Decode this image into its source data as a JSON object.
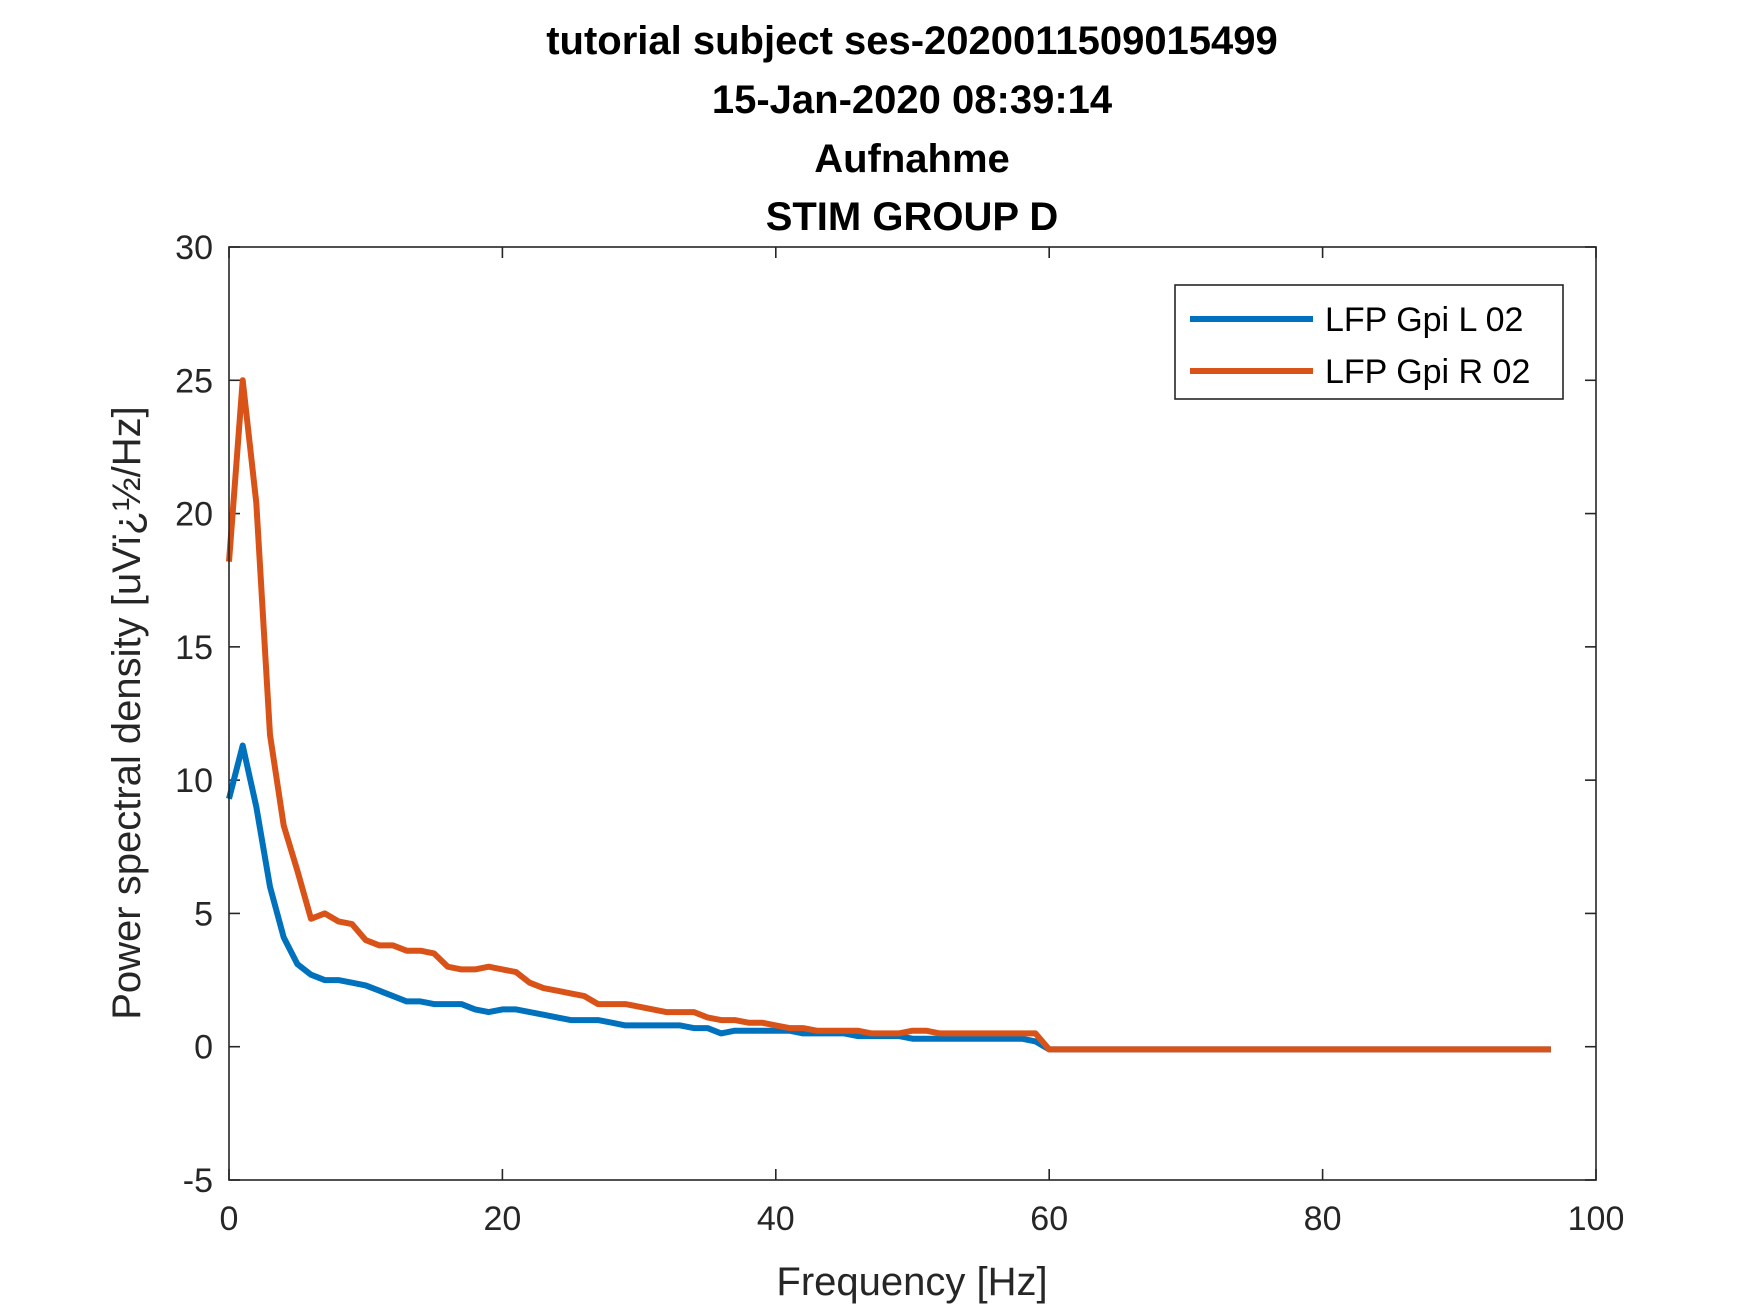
{
  "chart_data": {
    "type": "line",
    "title_lines": [
      "tutorial subject ses-2020011509015499",
      "15-Jan-2020 08:39:14",
      "Aufnahme",
      "STIM GROUP D"
    ],
    "xlabel": "Frequency [Hz]",
    "ylabel": "Power spectral density [uVï¿½/Hz]",
    "xlim": [
      0,
      100
    ],
    "ylim": [
      -5,
      30
    ],
    "x_ticks": [
      "0",
      "20",
      "40",
      "60",
      "80",
      "100"
    ],
    "y_ticks": [
      "-5",
      "0",
      "5",
      "10",
      "15",
      "20",
      "25",
      "30"
    ],
    "grid": false,
    "legend_position": "top-right",
    "series": [
      {
        "name": "LFP Gpi L 02",
        "color": "#0072BD",
        "x": [
          0,
          1,
          2,
          3,
          4,
          5,
          6,
          7,
          8,
          9,
          10,
          11,
          12,
          13,
          14,
          15,
          16,
          17,
          18,
          19,
          20,
          21,
          22,
          23,
          24,
          25,
          26,
          27,
          28,
          29,
          30,
          31,
          32,
          33,
          34,
          35,
          36,
          37,
          38,
          39,
          40,
          41,
          42,
          43,
          44,
          45,
          46,
          47,
          48,
          49,
          50,
          51,
          52,
          53,
          54,
          55,
          56,
          57,
          58,
          59,
          60,
          65,
          70,
          75,
          80,
          85,
          90,
          96.7
        ],
        "y": [
          9.3,
          11.3,
          9.0,
          6.0,
          4.1,
          3.1,
          2.7,
          2.5,
          2.5,
          2.4,
          2.3,
          2.1,
          1.9,
          1.7,
          1.7,
          1.6,
          1.6,
          1.6,
          1.4,
          1.3,
          1.4,
          1.4,
          1.3,
          1.2,
          1.1,
          1.0,
          1.0,
          1.0,
          0.9,
          0.8,
          0.8,
          0.8,
          0.8,
          0.8,
          0.7,
          0.7,
          0.5,
          0.6,
          0.6,
          0.6,
          0.6,
          0.6,
          0.5,
          0.5,
          0.5,
          0.5,
          0.4,
          0.4,
          0.4,
          0.4,
          0.3,
          0.3,
          0.3,
          0.3,
          0.3,
          0.3,
          0.3,
          0.3,
          0.3,
          0.2,
          -0.1,
          -0.1,
          -0.1,
          -0.1,
          -0.1,
          -0.1,
          -0.1,
          -0.1
        ]
      },
      {
        "name": "LFP Gpi R 02",
        "color": "#D95319",
        "x": [
          0,
          1,
          2,
          3,
          4,
          5,
          6,
          7,
          8,
          9,
          10,
          11,
          12,
          13,
          14,
          15,
          16,
          17,
          18,
          19,
          20,
          21,
          22,
          23,
          24,
          25,
          26,
          27,
          28,
          29,
          30,
          31,
          32,
          33,
          34,
          35,
          36,
          37,
          38,
          39,
          40,
          41,
          42,
          43,
          44,
          45,
          46,
          47,
          48,
          49,
          50,
          51,
          52,
          53,
          54,
          55,
          56,
          57,
          58,
          59,
          60,
          65,
          70,
          75,
          80,
          85,
          90,
          96.7
        ],
        "y": [
          18.2,
          25.0,
          20.4,
          11.7,
          8.3,
          6.6,
          4.8,
          5.0,
          4.7,
          4.6,
          4.0,
          3.8,
          3.8,
          3.6,
          3.6,
          3.5,
          3.0,
          2.9,
          2.9,
          3.0,
          2.9,
          2.8,
          2.4,
          2.2,
          2.1,
          2.0,
          1.9,
          1.6,
          1.6,
          1.6,
          1.5,
          1.4,
          1.3,
          1.3,
          1.3,
          1.1,
          1.0,
          1.0,
          0.9,
          0.9,
          0.8,
          0.7,
          0.7,
          0.6,
          0.6,
          0.6,
          0.6,
          0.5,
          0.5,
          0.5,
          0.6,
          0.6,
          0.5,
          0.5,
          0.5,
          0.5,
          0.5,
          0.5,
          0.5,
          0.5,
          -0.1,
          -0.1,
          -0.1,
          -0.1,
          -0.1,
          -0.1,
          -0.1,
          -0.1
        ]
      }
    ]
  }
}
